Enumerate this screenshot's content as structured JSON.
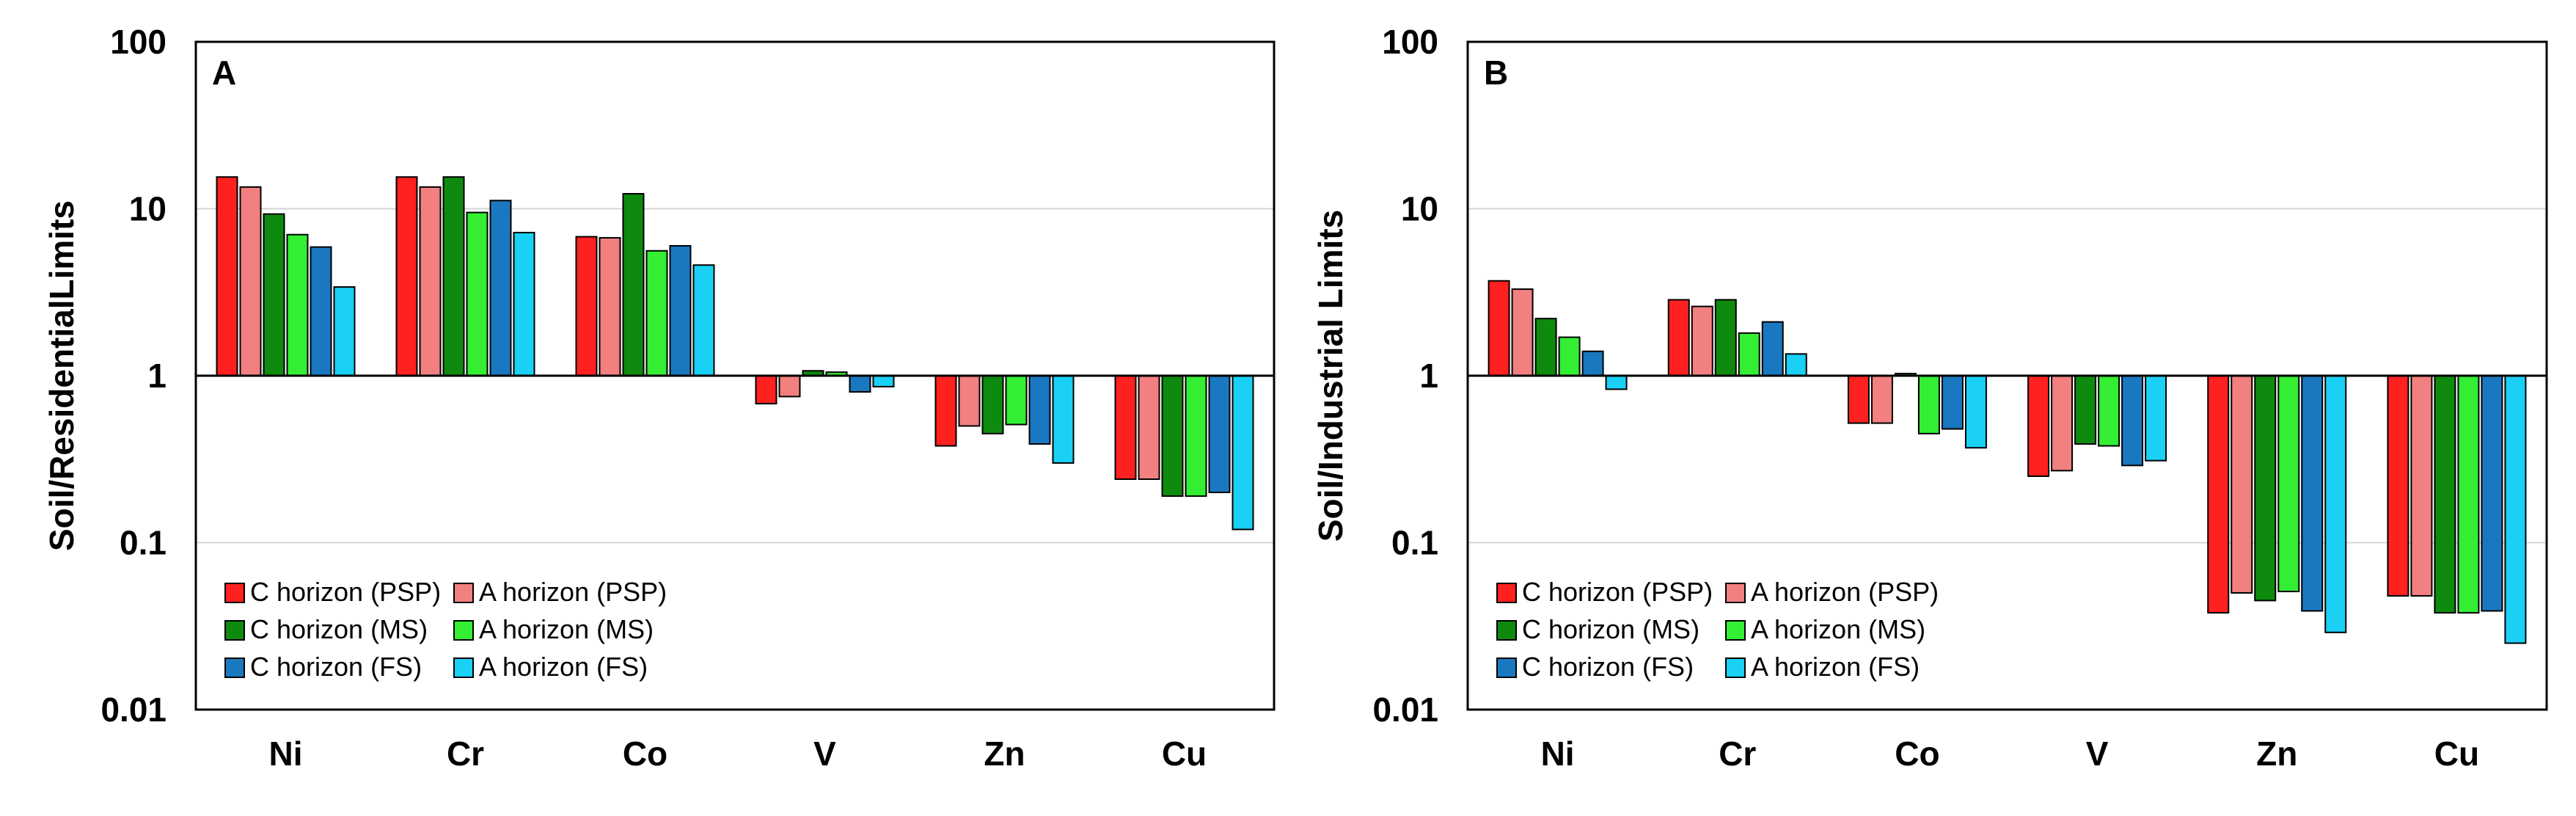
{
  "chart_data": [
    {
      "type": "bar",
      "panel_label": "A",
      "ylabel": "Soil/ResidentialLimits",
      "yscale": "log",
      "ylim": [
        0.01,
        100
      ],
      "yticks": [
        "100",
        "10",
        "1",
        "0.1",
        "0.01"
      ],
      "baseline": 1,
      "grid": true,
      "legend_position": "bottom-left",
      "categories": [
        "Ni",
        "Cr",
        "Co",
        "V",
        "Zn",
        "Cu"
      ],
      "series": [
        {
          "name": "C horizon (PSP)",
          "color": "#ff2020",
          "values": [
            15.5,
            15.5,
            6.8,
            0.68,
            0.38,
            0.24
          ]
        },
        {
          "name": "A horizon (PSP)",
          "color": "#f28080",
          "values": [
            13.5,
            13.5,
            6.7,
            0.75,
            0.5,
            0.24
          ]
        },
        {
          "name": "C horizon (MS)",
          "color": "#0e8a0e",
          "values": [
            9.3,
            15.5,
            12.3,
            1.07,
            0.45,
            0.19
          ]
        },
        {
          "name": "A horizon (MS)",
          "color": "#33ee33",
          "values": [
            7.0,
            9.5,
            5.6,
            1.05,
            0.51,
            0.19
          ]
        },
        {
          "name": "C horizon (FS)",
          "color": "#1a78c0",
          "values": [
            5.9,
            11.2,
            6.0,
            0.8,
            0.39,
            0.2
          ]
        },
        {
          "name": "A horizon (FS)",
          "color": "#1ad0f5",
          "values": [
            3.4,
            7.2,
            4.6,
            0.86,
            0.3,
            0.12
          ]
        }
      ]
    },
    {
      "type": "bar",
      "panel_label": "B",
      "ylabel": "Soil/Industrial Limits",
      "yscale": "log",
      "ylim": [
        0.01,
        100
      ],
      "yticks": [
        "100",
        "10",
        "1",
        "0.1",
        "0.01"
      ],
      "baseline": 1,
      "grid": true,
      "legend_position": "bottom-left",
      "categories": [
        "Ni",
        "Cr",
        "Co",
        "V",
        "Zn",
        "Cu"
      ],
      "series": [
        {
          "name": "C horizon (PSP)",
          "color": "#ff2020",
          "values": [
            3.7,
            2.85,
            0.52,
            0.25,
            0.038,
            0.048
          ]
        },
        {
          "name": "A horizon (PSP)",
          "color": "#f28080",
          "values": [
            3.3,
            2.6,
            0.52,
            0.27,
            0.05,
            0.048
          ]
        },
        {
          "name": "C horizon (MS)",
          "color": "#0e8a0e",
          "values": [
            2.2,
            2.85,
            1.03,
            0.39,
            0.045,
            0.038
          ]
        },
        {
          "name": "A horizon (MS)",
          "color": "#33ee33",
          "values": [
            1.7,
            1.8,
            0.45,
            0.38,
            0.051,
            0.038
          ]
        },
        {
          "name": "C horizon (FS)",
          "color": "#1a78c0",
          "values": [
            1.4,
            2.1,
            0.48,
            0.29,
            0.039,
            0.039
          ]
        },
        {
          "name": "A horizon (FS)",
          "color": "#1ad0f5",
          "values": [
            0.83,
            1.35,
            0.37,
            0.31,
            0.029,
            0.025
          ]
        }
      ]
    }
  ]
}
